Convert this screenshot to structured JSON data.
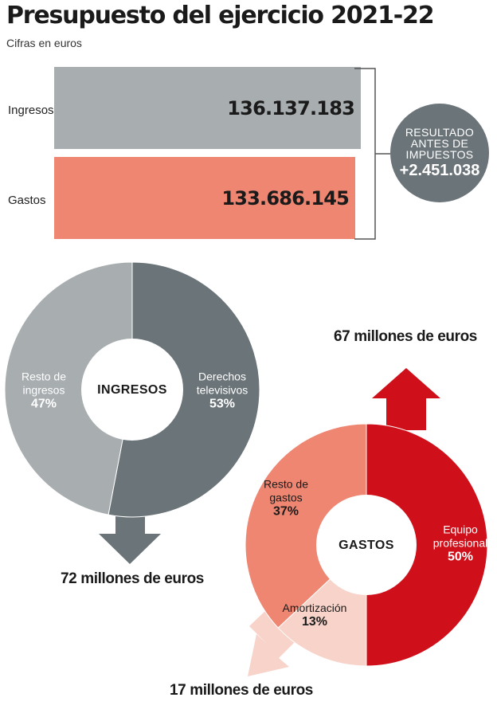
{
  "header": {
    "title": "Presupuesto del ejercicio 2021-22",
    "subtitle": "Cifras en euros"
  },
  "colors": {
    "ingresos_bar": "#a8adb0",
    "gastos_bar": "#ee8671",
    "derechos": "#6b7479",
    "resto_ingresos": "#a8adb0",
    "equipo": "#cf101a",
    "resto_gastos": "#ee8671",
    "amortizacion": "#f7d3c9",
    "result_circle": "#6b7479"
  },
  "chart_data": [
    {
      "type": "bar",
      "orientation": "horizontal",
      "categories": [
        "Ingresos",
        "Gastos"
      ],
      "values": [
        136137183,
        133686145
      ],
      "value_labels": [
        "136.137.183",
        "133.686.145"
      ],
      "annotation": {
        "label": "RESULTADO ANTES DE IMPUESTOS",
        "value": "+2.451.038"
      }
    },
    {
      "type": "pie",
      "donut": true,
      "center_label": "INGRESOS",
      "slices": [
        {
          "name": "Derechos televisivos",
          "value": 53,
          "label": "53%"
        },
        {
          "name": "Resto de ingresos",
          "value": 47,
          "label": "47%"
        }
      ],
      "flow_annotation": "72 millones de euros"
    },
    {
      "type": "pie",
      "donut": true,
      "center_label": "GASTOS",
      "slices": [
        {
          "name": "Equipo profesional",
          "value": 50,
          "label": "50%"
        },
        {
          "name": "Amortización",
          "value": 13,
          "label": "13%"
        },
        {
          "name": "Resto de gastos",
          "value": 37,
          "label": "37%"
        }
      ],
      "flow_annotations": [
        "67 millones de euros",
        "17 millones de euros"
      ]
    }
  ]
}
